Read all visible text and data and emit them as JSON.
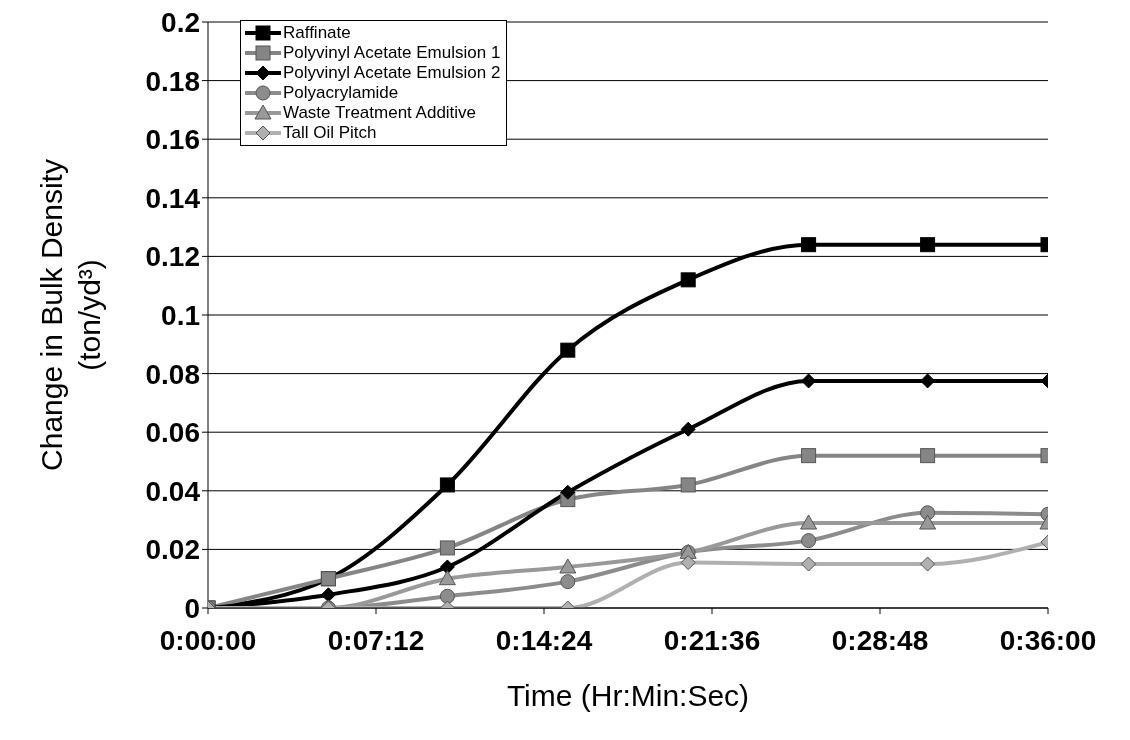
{
  "chart_data": {
    "type": "line",
    "xlabel": "Time (Hr:Min:Sec)",
    "ylabel": "Change in Bulk Density (ton/yd³)",
    "x": [
      0,
      0.086,
      0.171,
      0.257,
      0.343,
      0.429,
      0.514,
      0.6
    ],
    "xlim": [
      0,
      0.6
    ],
    "xticks": [
      {
        "value": 0,
        "label": "0:00:00"
      },
      {
        "value": 0.12,
        "label": "0:07:12"
      },
      {
        "value": 0.24,
        "label": "0:14:24"
      },
      {
        "value": 0.36,
        "label": "0:21:36"
      },
      {
        "value": 0.48,
        "label": "0:28:48"
      },
      {
        "value": 0.6,
        "label": "0:36:00"
      }
    ],
    "ylim": [
      0,
      0.2
    ],
    "yticks": [
      0,
      0.02,
      0.04,
      0.06,
      0.08,
      0.1,
      0.12,
      0.14,
      0.16,
      0.18,
      0.2
    ],
    "grid": "y",
    "legend": "top left",
    "series": [
      {
        "name": "Raffinate",
        "color": "#000000",
        "marker": "square",
        "values": [
          0,
          0.01,
          0.042,
          0.088,
          0.112,
          0.124,
          0.124,
          0.124
        ]
      },
      {
        "name": "Polyvinyl Acetate Emulsion 1",
        "color": "#858585",
        "marker": "square",
        "values": [
          0,
          0.01,
          0.0205,
          0.037,
          0.042,
          0.052,
          0.052,
          0.052
        ]
      },
      {
        "name": "Polyvinyl Acetate Emulsion 2",
        "color": "#000000",
        "marker": "diamond",
        "values": [
          0,
          0.0045,
          0.014,
          0.0395,
          0.061,
          0.0775,
          0.0775,
          0.0775
        ]
      },
      {
        "name": "Polyacrylamide",
        "color": "#8c8c8c",
        "marker": "circle",
        "values": [
          0,
          0,
          0.004,
          0.009,
          0.019,
          0.023,
          0.0325,
          0.032
        ]
      },
      {
        "name": "Waste Treatment Additive",
        "color": "#999999",
        "marker": "triangle",
        "values": [
          0,
          0,
          0.01,
          0.014,
          0.019,
          0.029,
          0.029,
          0.029
        ]
      },
      {
        "name": "Tall Oil Pitch",
        "color": "#b0b0b0",
        "marker": "diamond",
        "values": [
          0,
          0,
          0,
          0,
          0.0155,
          0.015,
          0.015,
          0.0225
        ]
      }
    ]
  }
}
